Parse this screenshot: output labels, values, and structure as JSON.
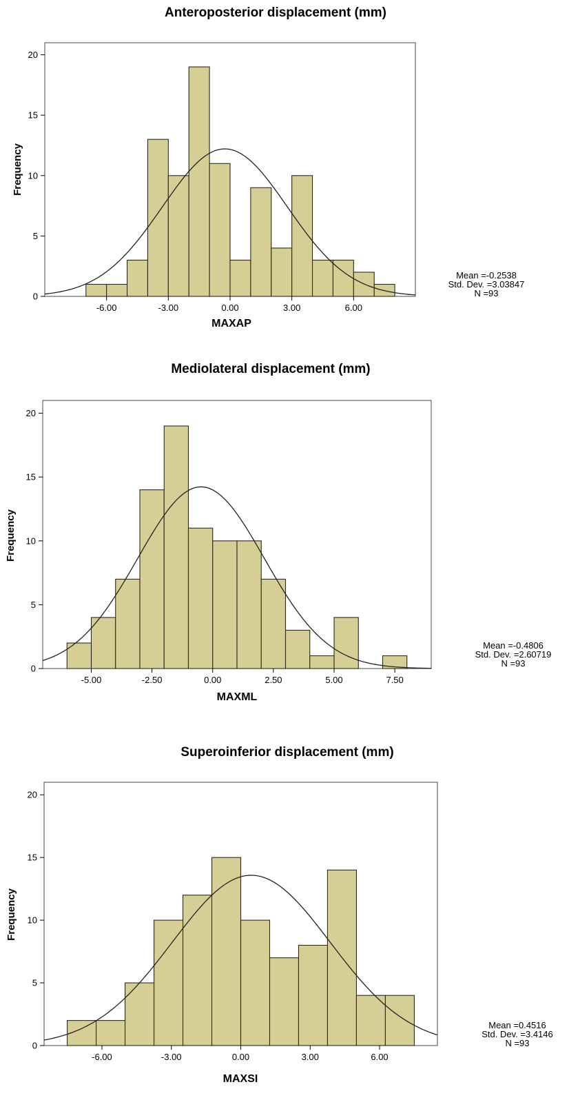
{
  "colors": {
    "bar_fill": "#d6cf95",
    "bar_stroke": "#2a2a1a",
    "curve": "#222222",
    "frame": "#444444"
  },
  "chart_data": [
    {
      "type": "bar",
      "title": "Anteroposterior displacement (mm)",
      "xlabel": "MAXAP",
      "ylabel": "Frequency",
      "xlim": [
        -9,
        9
      ],
      "ylim": [
        0,
        21
      ],
      "bin_width": 1,
      "xticks": [
        -6,
        -3,
        0,
        3,
        6
      ],
      "xtick_labels": [
        "-6.00",
        "-3.00",
        "0.00",
        "3.00",
        "6.00"
      ],
      "yticks": [
        0,
        5,
        10,
        15,
        20
      ],
      "bins": [
        {
          "start": -7,
          "count": 1
        },
        {
          "start": -6,
          "count": 1
        },
        {
          "start": -5,
          "count": 3
        },
        {
          "start": -4,
          "count": 13
        },
        {
          "start": -3,
          "count": 10
        },
        {
          "start": -2,
          "count": 19
        },
        {
          "start": -1,
          "count": 11
        },
        {
          "start": 0,
          "count": 3
        },
        {
          "start": 1,
          "count": 9
        },
        {
          "start": 2,
          "count": 4
        },
        {
          "start": 3,
          "count": 10
        },
        {
          "start": 4,
          "count": 3
        },
        {
          "start": 5,
          "count": 3
        },
        {
          "start": 6,
          "count": 2
        },
        {
          "start": 7,
          "count": 1
        }
      ],
      "normal_curve": {
        "mean": -0.2538,
        "sd": 3.03847,
        "n": 93
      },
      "stats": {
        "mean": "Mean =-0.2538",
        "std": "Std. Dev. =3.03847",
        "n": "N =93"
      }
    },
    {
      "type": "bar",
      "title": "Mediolateral displacement (mm)",
      "xlabel": "MAXML",
      "ylabel": "Frequency",
      "xlim": [
        -7,
        9
      ],
      "ylim": [
        0,
        21
      ],
      "bin_width": 1,
      "xticks": [
        -5,
        -2.5,
        0,
        2.5,
        5,
        7.5
      ],
      "xtick_labels": [
        "-5.00",
        "-2.50",
        "0.00",
        "2.50",
        "5.00",
        "7.50"
      ],
      "yticks": [
        0,
        5,
        10,
        15,
        20
      ],
      "bins": [
        {
          "start": -6,
          "count": 2
        },
        {
          "start": -5,
          "count": 4
        },
        {
          "start": -4,
          "count": 7
        },
        {
          "start": -3,
          "count": 14
        },
        {
          "start": -2,
          "count": 19
        },
        {
          "start": -1,
          "count": 11
        },
        {
          "start": 0,
          "count": 10
        },
        {
          "start": 1,
          "count": 10
        },
        {
          "start": 2,
          "count": 7
        },
        {
          "start": 3,
          "count": 3
        },
        {
          "start": 4,
          "count": 1
        },
        {
          "start": 5,
          "count": 4
        },
        {
          "start": 7,
          "count": 1
        }
      ],
      "normal_curve": {
        "mean": -0.4806,
        "sd": 2.60719,
        "n": 93
      },
      "stats": {
        "mean": "Mean =-0.4806",
        "std": "Std. Dev. =2.60719",
        "n": "N =93"
      }
    },
    {
      "type": "bar",
      "title": "Superoinferior displacement (mm)",
      "xlabel": "MAXSI",
      "ylabel": "Frequency",
      "xlim": [
        -8.5,
        8.5
      ],
      "ylim": [
        0,
        21
      ],
      "bin_width": 1.25,
      "xticks": [
        -6,
        -3,
        0,
        3,
        6
      ],
      "xtick_labels": [
        "-6.00",
        "-3.00",
        "0.00",
        "3.00",
        "6.00"
      ],
      "yticks": [
        0,
        5,
        10,
        15,
        20
      ],
      "bins": [
        {
          "start": -7.5,
          "count": 2
        },
        {
          "start": -6.25,
          "count": 2
        },
        {
          "start": -5.0,
          "count": 5
        },
        {
          "start": -3.75,
          "count": 10
        },
        {
          "start": -2.5,
          "count": 12
        },
        {
          "start": -1.25,
          "count": 15
        },
        {
          "start": 0.0,
          "count": 10
        },
        {
          "start": 1.25,
          "count": 7
        },
        {
          "start": 2.5,
          "count": 8
        },
        {
          "start": 3.75,
          "count": 14
        },
        {
          "start": 5.0,
          "count": 4
        },
        {
          "start": 6.25,
          "count": 4
        }
      ],
      "normal_curve": {
        "mean": 0.4516,
        "sd": 3.4146,
        "n": 93
      },
      "stats": {
        "mean": "Mean =0.4516",
        "std": "Std. Dev. =3.4146",
        "n": "N =93"
      }
    }
  ]
}
